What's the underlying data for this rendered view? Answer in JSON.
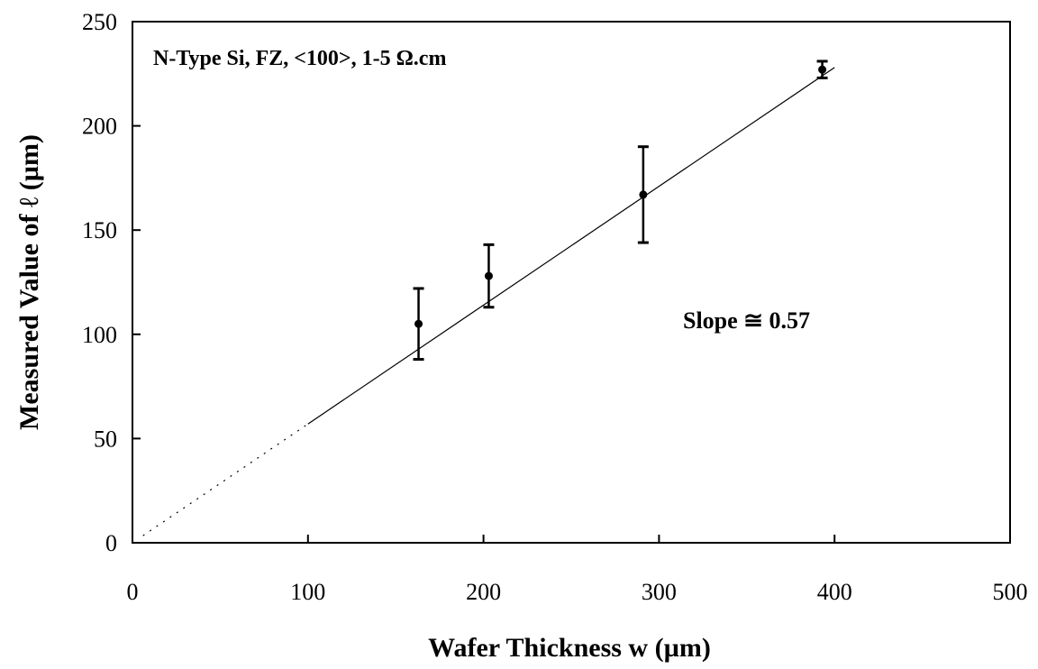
{
  "chart_data": {
    "type": "scatter",
    "title": "",
    "xlabel": "Wafer Thickness w (µm)",
    "ylabel": "Measured Value of ℓ (µm)",
    "xlim": [
      0,
      500
    ],
    "ylim": [
      0,
      250
    ],
    "xticks": [
      0,
      100,
      200,
      300,
      400,
      500
    ],
    "yticks": [
      0,
      50,
      100,
      150,
      200,
      250
    ],
    "xtick_labels": [
      "0",
      "100",
      "200",
      "300",
      "400",
      "500"
    ],
    "ytick_labels": [
      "0",
      "50",
      "100",
      "150",
      "200",
      "250"
    ],
    "grid": false,
    "legend": "none",
    "series": [
      {
        "points": [
          {
            "x": 163,
            "y": 105,
            "err_low": 88,
            "err_high": 122
          },
          {
            "x": 203,
            "y": 128,
            "err_low": 113,
            "err_high": 143
          },
          {
            "x": 291,
            "y": 167,
            "err_low": 144,
            "err_high": 190
          },
          {
            "x": 393,
            "y": 227,
            "err_low": 223,
            "err_high": 231
          }
        ]
      }
    ],
    "fit_line": {
      "slope": 0.57,
      "intercept": 0,
      "solid_range": [
        100,
        400
      ],
      "dotted_range": [
        6,
        100
      ]
    },
    "annotations": {
      "sample": "N-Type Si, FZ, <100>, 1-5 Ω.cm",
      "slope": "Slope ≅ 0.57"
    }
  }
}
